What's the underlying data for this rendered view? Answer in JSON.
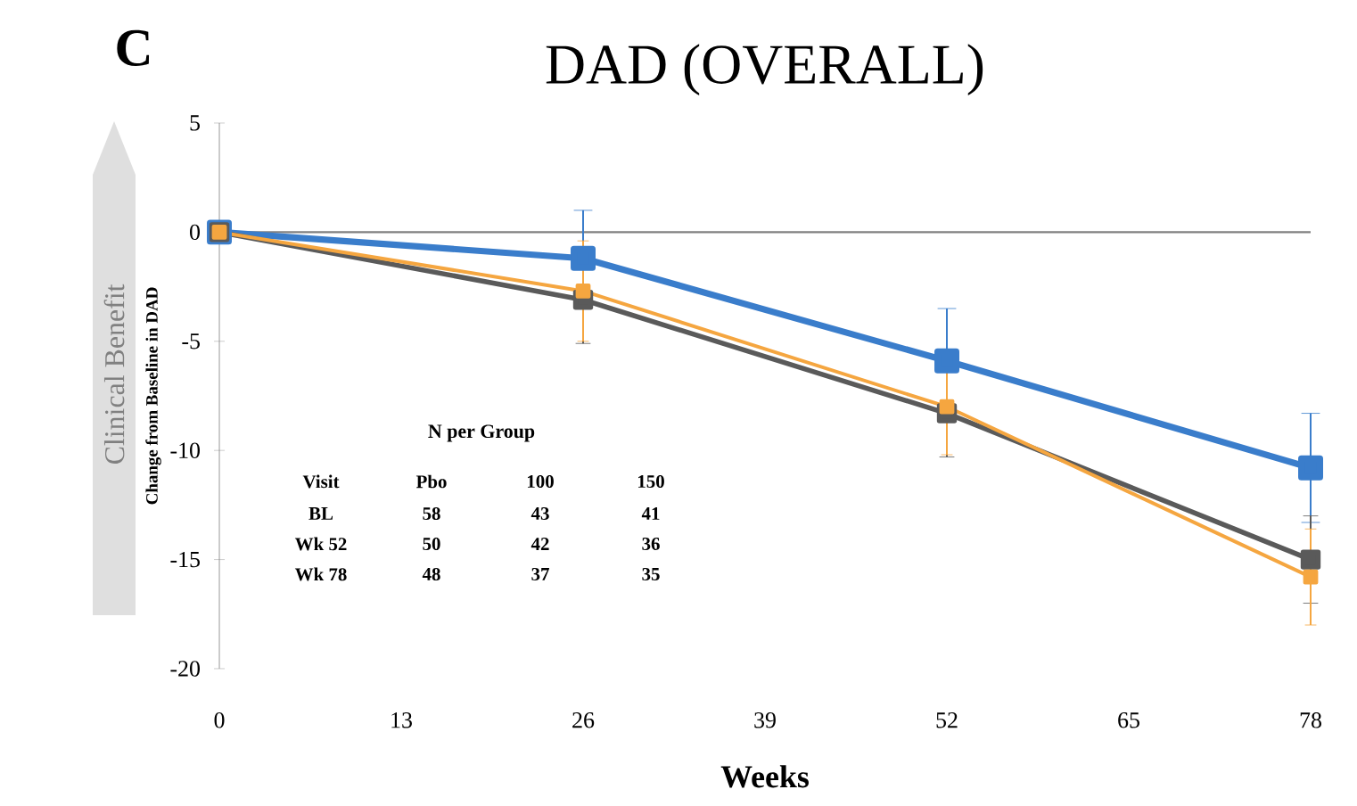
{
  "chart_data": {
    "type": "line",
    "title": "DAD (OVERALL)",
    "xlabel": "Weeks",
    "ylabel": "Change from Baseline in DAD",
    "x": [
      0,
      26,
      52,
      78
    ],
    "series": [
      {
        "color": "#3a7dcb",
        "values": [
          0,
          -1.2,
          -5.9,
          -10.8
        ],
        "errors": [
          null,
          2.2,
          2.4,
          2.5
        ]
      },
      {
        "color": "#5a5a5a",
        "values": [
          0,
          -3.1,
          -8.3,
          -15.0
        ],
        "errors": [
          null,
          2.0,
          2.0,
          2.0
        ]
      },
      {
        "color": "#f5a640",
        "values": [
          0,
          -2.7,
          -8.0,
          -15.8
        ],
        "errors": [
          null,
          2.3,
          2.2,
          2.2
        ]
      }
    ],
    "xlim": [
      0,
      78
    ],
    "xticks": [
      0,
      13,
      26,
      39,
      52,
      65,
      78
    ],
    "ylim": [
      -20,
      5
    ],
    "yticks": [
      -20,
      -15,
      -10,
      -5,
      0,
      5
    ],
    "ref_lines": [
      {
        "axis": "y",
        "value": 0,
        "color": "#808080"
      }
    ],
    "marker": "square",
    "grid": false,
    "annotations": [
      "C",
      "Clinical Benefit",
      "N per Group",
      "Visit",
      "Pbo",
      "100",
      "150",
      "BL",
      "58",
      "43",
      "41",
      "Wk 52",
      "50",
      "42",
      "36",
      "Wk 78",
      "48",
      "37",
      "35"
    ]
  }
}
